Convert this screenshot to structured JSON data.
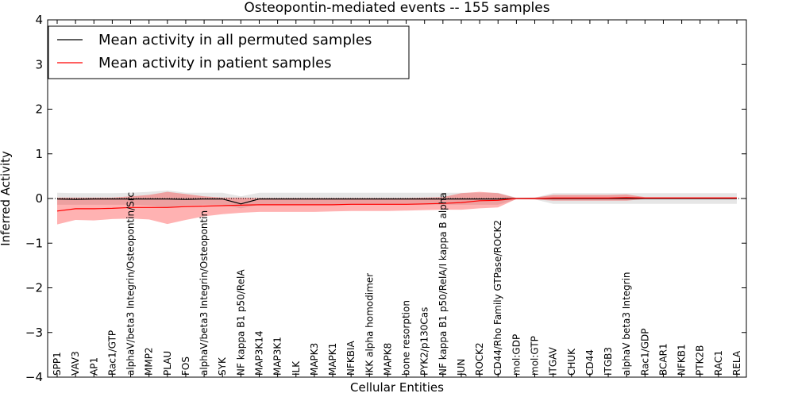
{
  "chart_data": {
    "type": "line",
    "title": "Osteopontin-mediated events -- 155 samples",
    "xlabel": "Cellular Entities",
    "ylabel": "Inferred Activity",
    "ylim": [
      -4,
      4
    ],
    "yticks": [
      -4,
      -3,
      -2,
      -1,
      0,
      1,
      2,
      3,
      4
    ],
    "ytick_labels": [
      "−4",
      "−3",
      "−2",
      "−1",
      "0",
      "1",
      "2",
      "3",
      "4"
    ],
    "legend_position": "top-left",
    "categories": [
      "SPP1",
      "VAV3",
      "AP1",
      "Rac1/GTP",
      "alphaV/beta3 Integrin/Osteopontin/Src",
      "MMP2",
      "PLAU",
      "FOS",
      "alphaV/beta3 Integrin/Osteopontin",
      "SYK",
      "NF kappa B1 p50/RelA",
      "MAP3K14",
      "MAP3K1",
      "ILK",
      "MAPK3",
      "MAPK1",
      "NFKBIA",
      "IKK alpha homodimer",
      "MAPK8",
      "bone resorption",
      "PYK2/p130Cas",
      "NF kappa B1 p50/RelA/I kappa B alpha",
      "JUN",
      "ROCK2",
      "CD44/Rho Family GTPase/ROCK2",
      "mol:GDP",
      "mol:GTP",
      "ITGAV",
      "CHUK",
      "CD44",
      "ITGB3",
      "alphaV beta3 Integrin",
      "Rac1/GDP",
      "BCAR1",
      "NFKB1",
      "PTK2B",
      "RAC1",
      "RELA"
    ],
    "series": [
      {
        "name": "Mean activity in all permuted samples",
        "color": "#000000",
        "values": [
          -0.01,
          -0.02,
          -0.01,
          -0.01,
          -0.01,
          -0.01,
          -0.01,
          -0.02,
          -0.01,
          -0.01,
          -0.12,
          -0.01,
          -0.01,
          -0.01,
          -0.01,
          -0.01,
          -0.01,
          -0.01,
          -0.01,
          -0.01,
          -0.01,
          -0.01,
          -0.01,
          -0.01,
          -0.01,
          0.0,
          0.0,
          0.0,
          0.0,
          0.0,
          0.0,
          0.0,
          0.0,
          0.0,
          0.0,
          0.0,
          0.0,
          0.0
        ],
        "upper": [
          0.13,
          0.12,
          0.12,
          0.12,
          0.13,
          0.15,
          0.18,
          0.13,
          0.13,
          0.13,
          0.05,
          0.13,
          0.13,
          0.13,
          0.13,
          0.13,
          0.13,
          0.13,
          0.13,
          0.13,
          0.13,
          0.13,
          0.13,
          0.13,
          0.13,
          0.02,
          0.02,
          0.12,
          0.12,
          0.12,
          0.12,
          0.12,
          0.12,
          0.12,
          0.12,
          0.12,
          0.12,
          0.12
        ],
        "lower": [
          -0.14,
          -0.14,
          -0.14,
          -0.14,
          -0.14,
          -0.16,
          -0.2,
          -0.15,
          -0.14,
          -0.14,
          -0.22,
          -0.14,
          -0.14,
          -0.14,
          -0.14,
          -0.14,
          -0.14,
          -0.14,
          -0.14,
          -0.14,
          -0.14,
          -0.14,
          -0.14,
          -0.14,
          -0.14,
          -0.02,
          -0.02,
          -0.12,
          -0.12,
          -0.12,
          -0.12,
          -0.12,
          -0.12,
          -0.12,
          -0.12,
          -0.12,
          -0.12,
          -0.12
        ]
      },
      {
        "name": "Mean activity in patient samples",
        "color": "#ff0000",
        "values": [
          -0.28,
          -0.23,
          -0.23,
          -0.22,
          -0.2,
          -0.2,
          -0.2,
          -0.18,
          -0.17,
          -0.16,
          -0.15,
          -0.14,
          -0.14,
          -0.14,
          -0.14,
          -0.14,
          -0.13,
          -0.13,
          -0.13,
          -0.13,
          -0.12,
          -0.11,
          -0.09,
          -0.05,
          -0.04,
          0.0,
          0.0,
          0.01,
          0.01,
          0.01,
          0.01,
          0.02,
          0.01,
          0.01,
          0.01,
          0.01,
          0.01,
          0.01
        ],
        "upper": [
          0.02,
          0.02,
          0.02,
          0.02,
          0.05,
          0.08,
          0.15,
          0.1,
          0.05,
          0.02,
          0.02,
          0.01,
          0.01,
          0.01,
          0.01,
          0.01,
          0.01,
          0.01,
          0.01,
          0.01,
          0.02,
          0.03,
          0.12,
          0.15,
          0.12,
          0.01,
          0.02,
          0.08,
          0.08,
          0.08,
          0.08,
          0.09,
          0.03,
          0.03,
          0.03,
          0.03,
          0.03,
          0.03
        ],
        "lower": [
          -0.58,
          -0.48,
          -0.49,
          -0.46,
          -0.45,
          -0.47,
          -0.57,
          -0.48,
          -0.4,
          -0.35,
          -0.32,
          -0.3,
          -0.3,
          -0.3,
          -0.3,
          -0.29,
          -0.28,
          -0.28,
          -0.28,
          -0.27,
          -0.26,
          -0.25,
          -0.25,
          -0.22,
          -0.2,
          -0.01,
          -0.02,
          -0.05,
          -0.05,
          -0.05,
          -0.05,
          -0.05,
          -0.01,
          -0.01,
          -0.01,
          -0.01,
          -0.01,
          -0.01
        ]
      }
    ],
    "grid": false
  }
}
